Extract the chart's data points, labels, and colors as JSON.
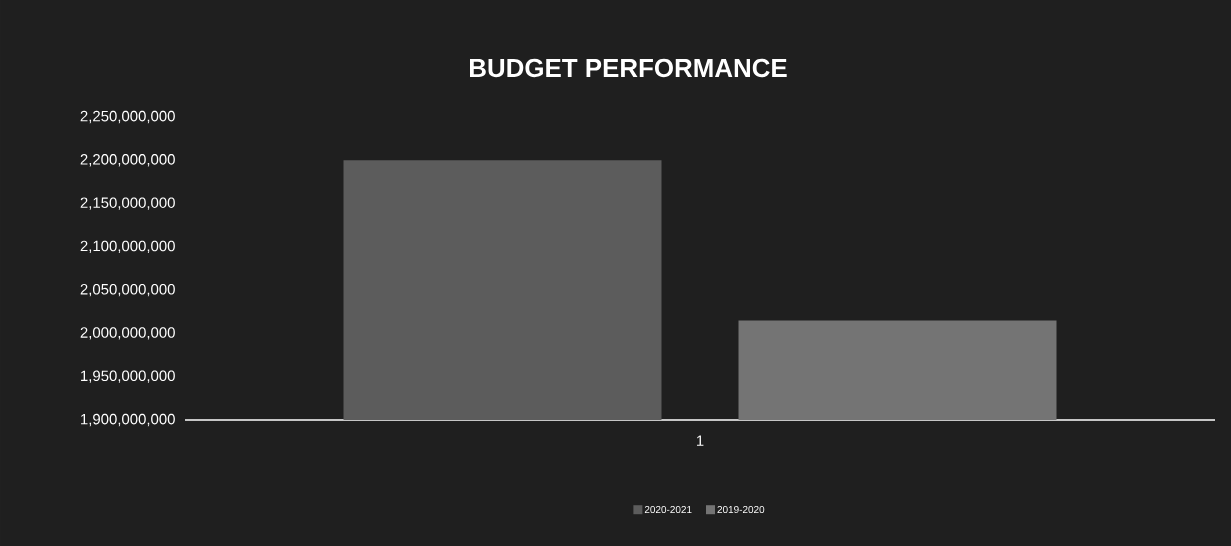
{
  "chart_data": {
    "type": "bar",
    "title": "BUDGET PERFORMANCE",
    "categories": [
      "1"
    ],
    "series": [
      {
        "name": "2020-2021",
        "color": "#5c5c5c",
        "values": [
          2200000000
        ]
      },
      {
        "name": "2019-2020",
        "color": "#747474",
        "values": [
          2015000000
        ]
      }
    ],
    "ylim": [
      1900000000,
      2250000000
    ],
    "yticks": [
      {
        "value": 1900000000,
        "label": "1,900,000,000"
      },
      {
        "value": 1950000000,
        "label": "1,950,000,000"
      },
      {
        "value": 2000000000,
        "label": "2,000,000,000"
      },
      {
        "value": 2050000000,
        "label": "2,050,000,000"
      },
      {
        "value": 2100000000,
        "label": "2,100,000,000"
      },
      {
        "value": 2150000000,
        "label": "2,150,000,000"
      },
      {
        "value": 2200000000,
        "label": "2,200,000,000"
      },
      {
        "value": 2250000000,
        "label": "2,250,000,000"
      }
    ],
    "grid": false,
    "legend": "bottom"
  }
}
